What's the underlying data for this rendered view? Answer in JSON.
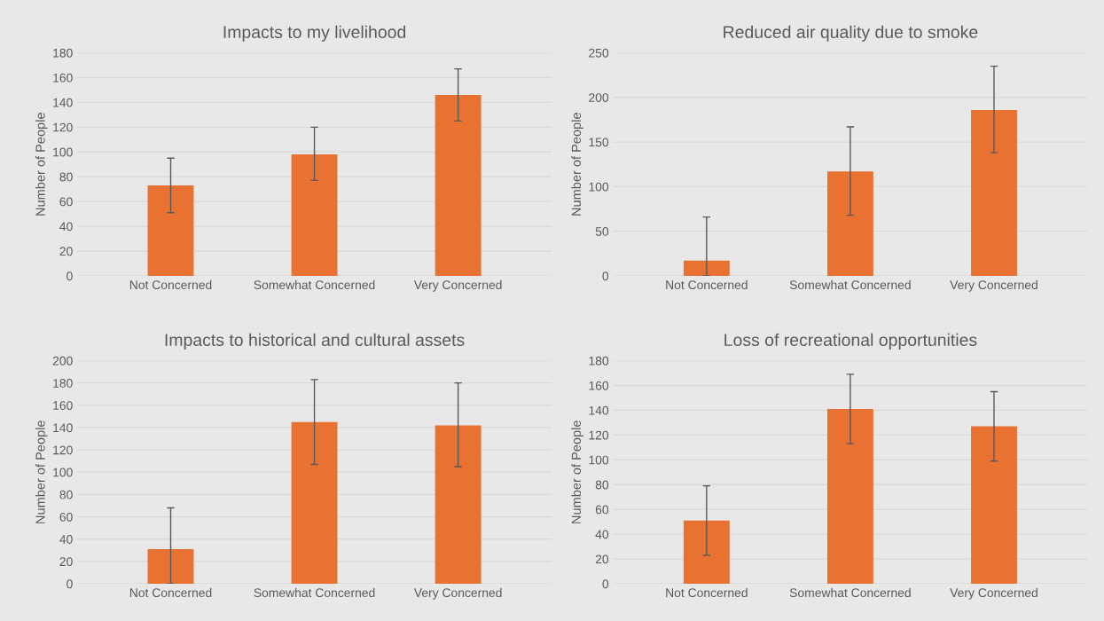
{
  "chart_data": [
    {
      "type": "bar",
      "title": "Impacts to my livelihood",
      "ylabel": "Number of People",
      "categories": [
        "Not Concerned",
        "Somewhat Concerned",
        "Very Concerned"
      ],
      "values": [
        73,
        98,
        146
      ],
      "errors": [
        [
          51,
          95
        ],
        [
          77,
          120
        ],
        [
          125,
          167
        ]
      ],
      "color": "#e97132",
      "ylim": [
        0,
        180
      ],
      "yticks": [
        0,
        20,
        40,
        60,
        80,
        100,
        120,
        140,
        160,
        180
      ],
      "grid": "y",
      "legend": false
    },
    {
      "type": "bar",
      "title": "Reduced air quality due to smoke",
      "ylabel": "Number of People",
      "categories": [
        "Not Concerned",
        "Somewhat Concerned",
        "Very Concerned"
      ],
      "values": [
        17,
        117,
        186
      ],
      "errors": [
        [
          0,
          66
        ],
        [
          68,
          167
        ],
        [
          138,
          235
        ]
      ],
      "color": "#e97132",
      "ylim": [
        0,
        250
      ],
      "yticks": [
        0,
        50,
        100,
        150,
        200,
        250
      ],
      "grid": "y",
      "legend": false
    },
    {
      "type": "bar",
      "title": "Impacts to historical and cultural assets",
      "ylabel": "Number of People",
      "categories": [
        "Not Concerned",
        "Somewhat Concerned",
        "Very Concerned"
      ],
      "values": [
        31,
        145,
        142
      ],
      "errors": [
        [
          0,
          68
        ],
        [
          107,
          183
        ],
        [
          105,
          180
        ]
      ],
      "color": "#e97132",
      "ylim": [
        0,
        200
      ],
      "yticks": [
        0,
        20,
        40,
        60,
        80,
        100,
        120,
        140,
        160,
        180,
        200
      ],
      "grid": "y",
      "legend": false
    },
    {
      "type": "bar",
      "title": "Loss of recreational opportunities",
      "ylabel": "Number of People",
      "categories": [
        "Not Concerned",
        "Somewhat Concerned",
        "Very Concerned"
      ],
      "values": [
        51,
        141,
        127
      ],
      "errors": [
        [
          23,
          79
        ],
        [
          113,
          169
        ],
        [
          99,
          155
        ]
      ],
      "color": "#e97132",
      "ylim": [
        0,
        180
      ],
      "yticks": [
        0,
        20,
        40,
        60,
        80,
        100,
        120,
        140,
        160,
        180
      ],
      "grid": "y",
      "legend": false
    }
  ]
}
